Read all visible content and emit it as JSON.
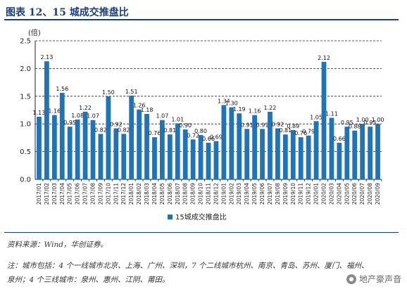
{
  "header": {
    "title": "图表 12、15 城成交推盘比"
  },
  "chart_data": {
    "type": "bar",
    "ylabel": "(倍)",
    "ylim": [
      0,
      2.5
    ],
    "yticks": [
      "0.0",
      "0.5",
      "1.0",
      "1.5",
      "2.0",
      "2.5"
    ],
    "grid": true,
    "legend_position": "bottom-center",
    "bar_color": "#1f73b8",
    "categories": [
      "2017/01",
      "2017/02",
      "2017/03",
      "2017/04",
      "2017/05",
      "2017/06",
      "2017/07",
      "2017/08",
      "2017/09",
      "2017/10",
      "2017/11",
      "2017/12",
      "2018/01",
      "2018/02",
      "2018/03",
      "2018/04",
      "2018/05",
      "2018/06",
      "2018/07",
      "2018/08",
      "2018/09",
      "2018/10",
      "2018/11",
      "2018/12",
      "2019/01",
      "2019/02",
      "2019/03",
      "2019/04",
      "2019/05",
      "2019/06",
      "2019/07",
      "2019/08",
      "2019/09",
      "2019/10",
      "2019/11",
      "2019/12",
      "2020/01",
      "2020/02",
      "2020/03",
      "2020/04",
      "2020/05",
      "2020/06",
      "2020/07",
      "2020/08",
      "2020/09"
    ],
    "series": [
      {
        "name": "15城成交推盘比",
        "values": [
          1.13,
          2.13,
          1.16,
          1.56,
          0.95,
          1.08,
          1.22,
          1.07,
          0.82,
          1.5,
          0.92,
          0.82,
          1.51,
          1.26,
          1.18,
          0.76,
          1.07,
          0.81,
          1.01,
          0.9,
          0.72,
          0.8,
          0.66,
          0.69,
          1.34,
          1.3,
          1.19,
          0.91,
          1.16,
          0.91,
          1.22,
          0.92,
          0.81,
          0.89,
          0.76,
          0.79,
          1.05,
          2.12,
          1.11,
          0.66,
          0.95,
          0.88,
          1.0,
          0.95,
          1.0
        ],
        "labels": [
          "1.13",
          "2.13",
          "1.16",
          "1.56",
          "0.95",
          "1.08",
          "1.22",
          "1.07",
          "0.82",
          "1.50",
          "0.92",
          "0.82",
          "1.51",
          "1.26",
          "1.18",
          "0.76",
          "1.07",
          "0.81",
          "1.01",
          "0.90",
          "0.72",
          "0.80",
          "0.66",
          "0.69",
          "1.34",
          "1.30",
          "1.19",
          "0.91",
          "1.16",
          "0.91",
          "1.22",
          "0.92",
          "0.81",
          "0.89",
          "0.76",
          "0.79",
          "1.05",
          "2.12",
          "1.11",
          "0.66",
          "0.95",
          "0.88",
          "1.00",
          "0.95",
          "1.00"
        ]
      }
    ]
  },
  "footer": {
    "source": "资料来源：Wind，华创证券。",
    "note_line1": "注：城市包括：4 个一线城市北京、上海、广州、深圳，7 个二线城市杭州、南京、青岛、苏州、厦门、福州、",
    "note_line2": "泉州；4 个三线城市：泉州、惠州、江阴、莆田。",
    "watermark": "地产豪声音"
  }
}
